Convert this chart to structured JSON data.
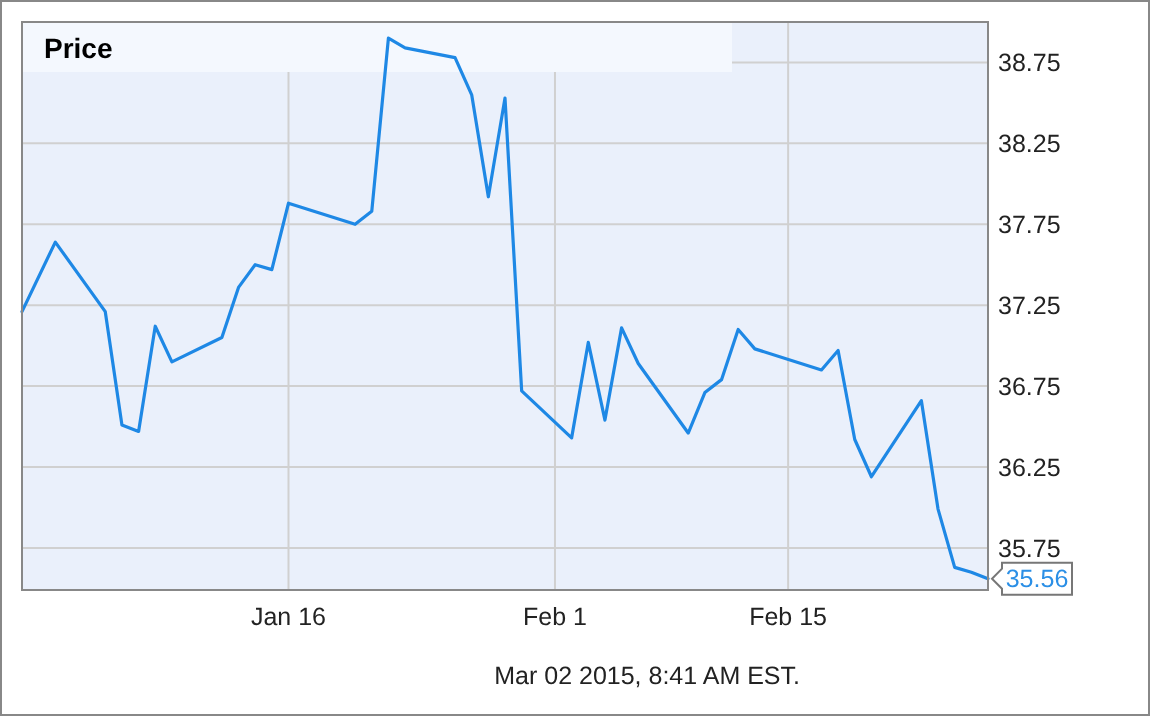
{
  "chart_data": {
    "type": "line",
    "x": [
      "2014-12-31",
      "2015-01-02",
      "2015-01-05",
      "2015-01-06",
      "2015-01-07",
      "2015-01-08",
      "2015-01-09",
      "2015-01-12",
      "2015-01-13",
      "2015-01-14",
      "2015-01-15",
      "2015-01-16",
      "2015-01-20",
      "2015-01-21",
      "2015-01-22",
      "2015-01-23",
      "2015-01-26",
      "2015-01-27",
      "2015-01-28",
      "2015-01-29",
      "2015-01-30",
      "2015-02-02",
      "2015-02-03",
      "2015-02-04",
      "2015-02-05",
      "2015-02-06",
      "2015-02-09",
      "2015-02-10",
      "2015-02-11",
      "2015-02-12",
      "2015-02-13",
      "2015-02-17",
      "2015-02-18",
      "2015-02-19",
      "2015-02-20",
      "2015-02-23",
      "2015-02-24",
      "2015-02-25",
      "2015-02-26",
      "2015-02-27"
    ],
    "series": [
      {
        "name": "Price",
        "color": "#1e88e5",
        "values": [
          37.21,
          37.64,
          37.21,
          36.51,
          36.47,
          37.12,
          36.9,
          37.05,
          37.36,
          37.5,
          37.47,
          37.88,
          37.75,
          37.83,
          38.9,
          38.84,
          38.78,
          38.55,
          37.92,
          38.53,
          36.72,
          36.43,
          37.02,
          36.54,
          37.11,
          36.89,
          36.46,
          36.71,
          36.79,
          37.1,
          36.98,
          36.85,
          36.97,
          36.42,
          36.19,
          36.66,
          35.99,
          35.63,
          35.6,
          35.56
        ]
      }
    ],
    "xlim": [
      "2014-12-31",
      "2015-02-27"
    ],
    "xticks": [
      {
        "value": "2015-01-16",
        "label": "Jan 16"
      },
      {
        "value": "2015-02-01",
        "label": "Feb 1"
      },
      {
        "value": "2015-02-15",
        "label": "Feb 15"
      }
    ],
    "ylim": [
      35.49,
      39.0
    ],
    "yticks": [
      {
        "value": 35.75,
        "label": "35.75"
      },
      {
        "value": 36.25,
        "label": "36.25"
      },
      {
        "value": 36.75,
        "label": "36.75"
      },
      {
        "value": 37.25,
        "label": "37.25"
      },
      {
        "value": 37.75,
        "label": "37.75"
      },
      {
        "value": 38.25,
        "label": "38.25"
      },
      {
        "value": 38.75,
        "label": "38.75"
      }
    ],
    "grid": true,
    "legend": "top left",
    "marker": "none",
    "line_style": "solid",
    "annotations": [
      {
        "text": "35.56",
        "x": "2015-02-27",
        "y": 35.56
      },
      "Mar 02 2015, 8:41 AM EST."
    ]
  }
}
